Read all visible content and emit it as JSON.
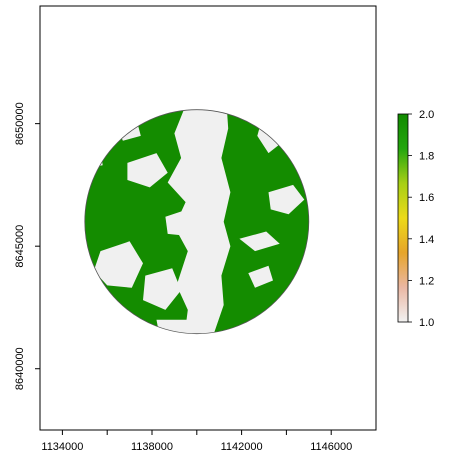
{
  "chart_data": {
    "type": "heatmap",
    "title": "",
    "xlabel": "",
    "ylabel": "",
    "xlim": [
      1133000,
      1148000
    ],
    "ylim": [
      8637500,
      8654800
    ],
    "x_ticks": [
      1134000,
      1138000,
      1142000,
      1146000
    ],
    "x_tick_labels": [
      "1134000",
      "1138000",
      "1142000",
      "1146000"
    ],
    "x_minor_ticks": [
      1136000,
      1140000,
      1144000
    ],
    "y_ticks": [
      8640000,
      8645000,
      8650000
    ],
    "y_tick_labels": [
      "8640000",
      "8645000",
      "8650000"
    ],
    "raster": {
      "shape": "circle",
      "center": [
        1140000,
        8646000
      ],
      "radius": 5000,
      "value_range": [
        1,
        2
      ],
      "dominant_value": 2,
      "value_1_description": "light grey patches, mostly a vertical north-south strip through the center and scattered patches",
      "value_2_description": "green, majority of the circle"
    },
    "colorbar": {
      "min": 1.0,
      "max": 2.0,
      "ticks": [
        1.0,
        1.2,
        1.4,
        1.6,
        1.8,
        2.0
      ],
      "tick_labels": [
        "1.0",
        "1.2",
        "1.4",
        "1.6",
        "1.8",
        "2.0"
      ],
      "colors": [
        "#f2f2f2",
        "#eab7a3",
        "#e6a52a",
        "#ecda18",
        "#a7cf16",
        "#24a60e",
        "#118a00"
      ],
      "placement": "right"
    },
    "colors": {
      "value_2": "#148c00",
      "value_1": "#f0f0f0"
    },
    "grid": false
  }
}
